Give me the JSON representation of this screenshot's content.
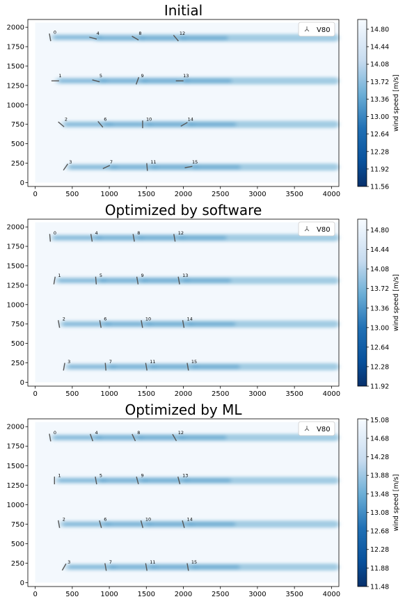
{
  "chart_data": [
    {
      "type": "heatmap",
      "title": "Initial",
      "legend": {
        "label": "V80",
        "placement": "top-right"
      },
      "xlim": [
        0,
        4000
      ],
      "ylim": [
        0,
        2000
      ],
      "x_ticks": [
        "0",
        "500",
        "1000",
        "1500",
        "2000",
        "2500",
        "3000",
        "3500",
        "4000"
      ],
      "y_ticks": [
        "0",
        "250",
        "500",
        "750",
        "1000",
        "1250",
        "1500",
        "1750",
        "2000"
      ],
      "colorbar": {
        "label": "wind speed [m/s]",
        "min": 11.56,
        "max": 15.0,
        "ticks": [
          "11.56",
          "11.92",
          "12.28",
          "12.64",
          "13.00",
          "13.36",
          "13.72",
          "14.08",
          "14.44",
          "14.80"
        ]
      },
      "turbines": [
        {
          "id": "0",
          "x": 200,
          "y": 1870,
          "yaw": 10
        },
        {
          "id": "1",
          "x": 270,
          "y": 1310,
          "yaw": 90
        },
        {
          "id": "2",
          "x": 350,
          "y": 750,
          "yaw": 50
        },
        {
          "id": "3",
          "x": 410,
          "y": 200,
          "yaw": -35
        },
        {
          "id": "4",
          "x": 780,
          "y": 1860,
          "yaw": 75
        },
        {
          "id": "5",
          "x": 820,
          "y": 1310,
          "yaw": 75
        },
        {
          "id": "6",
          "x": 880,
          "y": 750,
          "yaw": 40
        },
        {
          "id": "7",
          "x": 960,
          "y": 200,
          "yaw": -65
        },
        {
          "id": "8",
          "x": 1350,
          "y": 1860,
          "yaw": 60
        },
        {
          "id": "9",
          "x": 1380,
          "y": 1310,
          "yaw": -20
        },
        {
          "id": "10",
          "x": 1450,
          "y": 750,
          "yaw": 0
        },
        {
          "id": "11",
          "x": 1510,
          "y": 200,
          "yaw": 5
        },
        {
          "id": "12",
          "x": 1900,
          "y": 1860,
          "yaw": 40
        },
        {
          "id": "13",
          "x": 1950,
          "y": 1310,
          "yaw": 90
        },
        {
          "id": "14",
          "x": 2010,
          "y": 750,
          "yaw": -60
        },
        {
          "id": "15",
          "x": 2070,
          "y": 200,
          "yaw": -80
        }
      ]
    },
    {
      "type": "heatmap",
      "title": "Optimized by software",
      "legend": {
        "label": "V80",
        "placement": "top-right"
      },
      "xlim": [
        0,
        4000
      ],
      "ylim": [
        0,
        2000
      ],
      "x_ticks": [
        "0",
        "500",
        "1000",
        "1500",
        "2000",
        "2500",
        "3000",
        "3500",
        "4000"
      ],
      "y_ticks": [
        "0",
        "250",
        "500",
        "750",
        "1000",
        "1250",
        "1500",
        "1750",
        "2000"
      ],
      "colorbar": {
        "label": "wind speed [m/s]",
        "min": 11.92,
        "max": 15.0,
        "ticks": [
          "11.92",
          "12.28",
          "12.64",
          "13.00",
          "13.36",
          "13.72",
          "14.08",
          "14.44",
          "14.80"
        ]
      },
      "turbines": [
        {
          "id": "0",
          "x": 200,
          "y": 1860,
          "yaw": 5
        },
        {
          "id": "1",
          "x": 260,
          "y": 1310,
          "yaw": -10
        },
        {
          "id": "2",
          "x": 320,
          "y": 750,
          "yaw": 10
        },
        {
          "id": "3",
          "x": 390,
          "y": 200,
          "yaw": -10
        },
        {
          "id": "4",
          "x": 760,
          "y": 1860,
          "yaw": 10
        },
        {
          "id": "5",
          "x": 820,
          "y": 1310,
          "yaw": 5
        },
        {
          "id": "6",
          "x": 880,
          "y": 750,
          "yaw": 10
        },
        {
          "id": "7",
          "x": 950,
          "y": 200,
          "yaw": 5
        },
        {
          "id": "8",
          "x": 1330,
          "y": 1860,
          "yaw": 10
        },
        {
          "id": "9",
          "x": 1380,
          "y": 1310,
          "yaw": 10
        },
        {
          "id": "10",
          "x": 1440,
          "y": 750,
          "yaw": 10
        },
        {
          "id": "11",
          "x": 1500,
          "y": 200,
          "yaw": 10
        },
        {
          "id": "12",
          "x": 1880,
          "y": 1860,
          "yaw": 10
        },
        {
          "id": "13",
          "x": 1940,
          "y": 1310,
          "yaw": 10
        },
        {
          "id": "14",
          "x": 2000,
          "y": 750,
          "yaw": 10
        },
        {
          "id": "15",
          "x": 2060,
          "y": 200,
          "yaw": 10
        }
      ]
    },
    {
      "type": "heatmap",
      "title": "Optimized by ML",
      "legend": {
        "label": "V80",
        "placement": "top-right"
      },
      "xlim": [
        0,
        4000
      ],
      "ylim": [
        0,
        2000
      ],
      "x_ticks": [
        "0",
        "500",
        "1000",
        "1500",
        "2000",
        "2500",
        "3000",
        "3500",
        "4000"
      ],
      "y_ticks": [
        "0",
        "250",
        "500",
        "750",
        "1000",
        "1250",
        "1500",
        "1750",
        "2000"
      ],
      "colorbar": {
        "label": "wind speed [m/s]",
        "min": 11.48,
        "max": 15.1,
        "ticks": [
          "11.48",
          "11.88",
          "12.28",
          "12.68",
          "13.08",
          "13.48",
          "13.88",
          "14.28",
          "14.68",
          "15.08"
        ]
      },
      "turbines": [
        {
          "id": "0",
          "x": 200,
          "y": 1860,
          "yaw": 10
        },
        {
          "id": "1",
          "x": 260,
          "y": 1310,
          "yaw": 0
        },
        {
          "id": "2",
          "x": 320,
          "y": 750,
          "yaw": 10
        },
        {
          "id": "3",
          "x": 390,
          "y": 200,
          "yaw": -30
        },
        {
          "id": "4",
          "x": 760,
          "y": 1860,
          "yaw": 20
        },
        {
          "id": "5",
          "x": 820,
          "y": 1310,
          "yaw": 10
        },
        {
          "id": "6",
          "x": 880,
          "y": 750,
          "yaw": 15
        },
        {
          "id": "7",
          "x": 950,
          "y": 200,
          "yaw": 10
        },
        {
          "id": "8",
          "x": 1330,
          "y": 1860,
          "yaw": 25
        },
        {
          "id": "9",
          "x": 1380,
          "y": 1310,
          "yaw": 15
        },
        {
          "id": "10",
          "x": 1440,
          "y": 750,
          "yaw": 15
        },
        {
          "id": "11",
          "x": 1500,
          "y": 200,
          "yaw": 10
        },
        {
          "id": "12",
          "x": 1880,
          "y": 1860,
          "yaw": 30
        },
        {
          "id": "13",
          "x": 1940,
          "y": 1310,
          "yaw": 15
        },
        {
          "id": "14",
          "x": 2000,
          "y": 750,
          "yaw": 15
        },
        {
          "id": "15",
          "x": 2060,
          "y": 200,
          "yaw": 10
        }
      ]
    }
  ]
}
